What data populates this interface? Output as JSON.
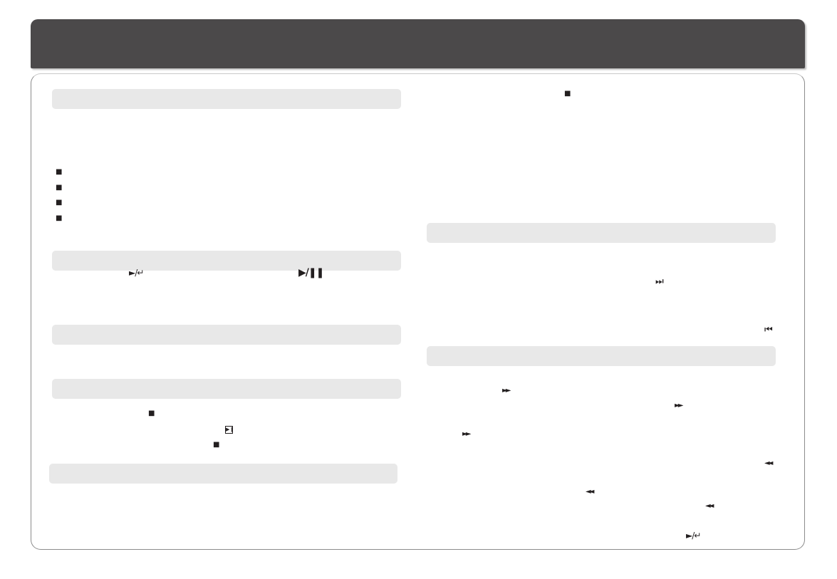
{
  "colors": {
    "header": "#4b494a",
    "section_bar": "#e8e8e8",
    "frame_border": "#8c8c8c",
    "ink": "#231f20"
  },
  "icons": {
    "bullet": "■",
    "stop": "■",
    "play_enter": "►/↵",
    "play_pause": "▶/❚❚",
    "next_box": "▶❙",
    "skip_next": "⏭",
    "skip_prev": "⏮",
    "fast_forward": "►►",
    "rewind": "◄◄"
  }
}
